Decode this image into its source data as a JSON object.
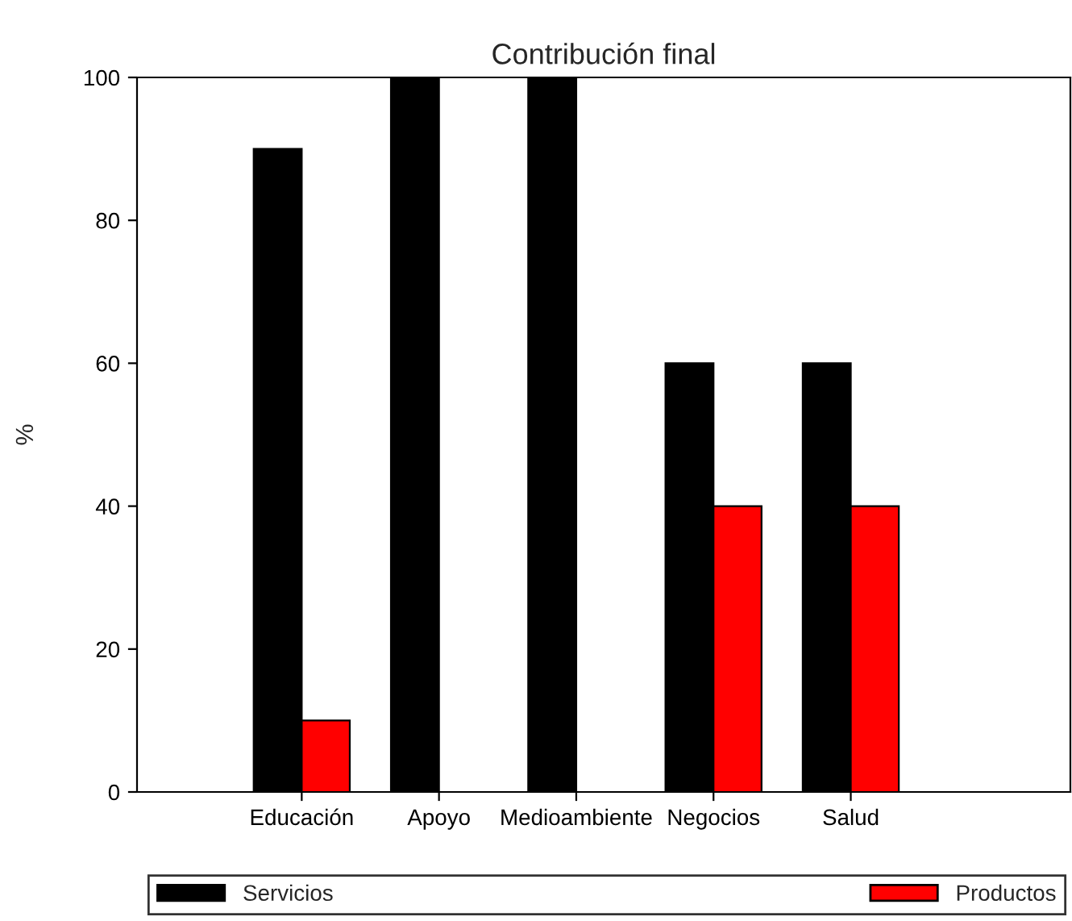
{
  "chart_data": {
    "type": "bar",
    "title": "Contribución final",
    "ylabel": "%",
    "categories": [
      "Educación",
      "Apoyo",
      "Medioambiente",
      "Negocios",
      "Salud"
    ],
    "series": [
      {
        "name": "Servicios",
        "color": "#000000",
        "values": [
          90,
          100,
          100,
          60,
          60
        ]
      },
      {
        "name": "Productos",
        "color": "#ff0000",
        "values": [
          10,
          null,
          null,
          40,
          40
        ]
      }
    ],
    "ylim": [
      0,
      100
    ],
    "yticks": [
      0,
      20,
      40,
      60,
      80,
      100
    ],
    "grid": false,
    "legend": "bottom"
  }
}
